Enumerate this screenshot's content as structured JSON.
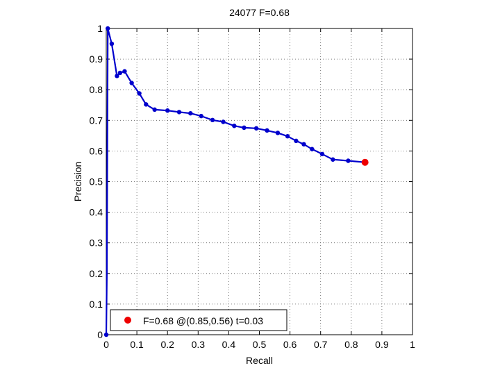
{
  "chart_data": {
    "type": "line",
    "title": "24077 F=0.68",
    "xlabel": "Recall",
    "ylabel": "Precision",
    "xlim": [
      0,
      1
    ],
    "ylim": [
      0,
      1
    ],
    "xticks": [
      0,
      0.1,
      0.2,
      0.3,
      0.4,
      0.5,
      0.6,
      0.7,
      0.8,
      0.9,
      1
    ],
    "yticks": [
      0,
      0.1,
      0.2,
      0.3,
      0.4,
      0.5,
      0.6,
      0.7,
      0.8,
      0.9,
      1
    ],
    "xtick_labels": [
      "0",
      "0.1",
      "0.2",
      "0.3",
      "0.4",
      "0.5",
      "0.6",
      "0.7",
      "0.8",
      "0.9",
      "1"
    ],
    "ytick_labels": [
      "0",
      "0.1",
      "0.2",
      "0.3",
      "0.4",
      "0.5",
      "0.6",
      "0.7",
      "0.8",
      "0.9",
      "1"
    ],
    "grid": true,
    "series": [
      {
        "color": "#0000cc",
        "x": [
          0,
          0.002,
          0.005,
          0.018,
          0.035,
          0.045,
          0.06,
          0.083,
          0.108,
          0.13,
          0.158,
          0.2,
          0.238,
          0.275,
          0.31,
          0.347,
          0.382,
          0.418,
          0.45,
          0.49,
          0.525,
          0.56,
          0.592,
          0.62,
          0.645,
          0.672,
          0.705,
          0.74,
          0.79,
          0.845
        ],
        "y": [
          0,
          0.2,
          1.0,
          0.95,
          0.845,
          0.855,
          0.86,
          0.822,
          0.788,
          0.752,
          0.735,
          0.732,
          0.727,
          0.723,
          0.714,
          0.701,
          0.695,
          0.682,
          0.676,
          0.674,
          0.667,
          0.659,
          0.648,
          0.633,
          0.622,
          0.606,
          0.59,
          0.572,
          0.568,
          0.563
        ]
      }
    ],
    "highlight_point": {
      "x": 0.845,
      "y": 0.563,
      "color": "#ee0000"
    },
    "legend": {
      "placement": "bottom-left",
      "entries": [
        {
          "label": "F=0.68 @(0.85,0.56) t=0.03",
          "color": "#ee0000"
        }
      ]
    }
  }
}
